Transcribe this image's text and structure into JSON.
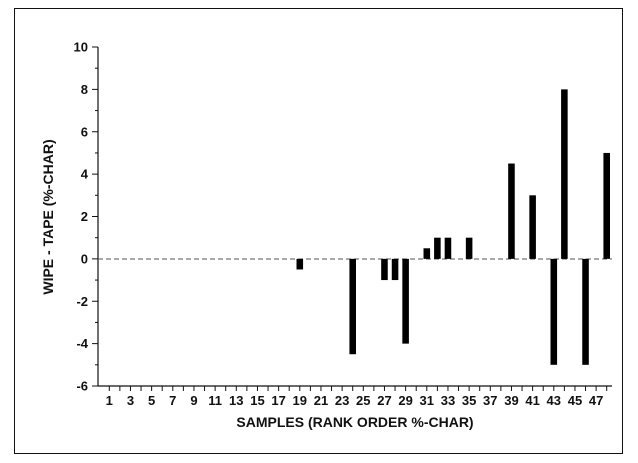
{
  "chart_data": {
    "type": "bar",
    "xlabel": "SAMPLES (RANK ORDER %-CHAR)",
    "ylabel": "WIPE - TAPE (%-CHAR)",
    "ylim": [
      -6,
      10
    ],
    "yticks": [
      -6,
      -4,
      -2,
      0,
      2,
      4,
      6,
      8,
      10
    ],
    "x_tick_labels": [
      "1",
      "3",
      "5",
      "7",
      "9",
      "11",
      "13",
      "15",
      "17",
      "19",
      "21",
      "23",
      "25",
      "27",
      "29",
      "31",
      "33",
      "35",
      "37",
      "39",
      "41",
      "43",
      "45",
      "47"
    ],
    "grid": false,
    "zero_line": "dashed",
    "bar_color": "#000000",
    "categories": [
      1,
      2,
      3,
      4,
      5,
      6,
      7,
      8,
      9,
      10,
      11,
      12,
      13,
      14,
      15,
      16,
      17,
      18,
      19,
      20,
      21,
      22,
      23,
      24,
      25,
      26,
      27,
      28,
      29,
      30,
      31,
      32,
      33,
      34,
      35,
      36,
      37,
      38,
      39,
      40,
      41,
      42,
      43,
      44,
      45,
      46,
      47,
      48
    ],
    "values": [
      0,
      0,
      0,
      0,
      0,
      0,
      0,
      0,
      0,
      0,
      0,
      0,
      0,
      0,
      0,
      0,
      0,
      0,
      -0.5,
      0,
      0,
      0,
      0,
      -4.5,
      0,
      0,
      -1,
      -1,
      -4,
      0,
      0.5,
      1,
      1,
      0,
      1,
      0,
      0,
      0,
      4.5,
      0,
      3,
      0,
      -5,
      8,
      0,
      -5,
      0,
      5
    ]
  }
}
